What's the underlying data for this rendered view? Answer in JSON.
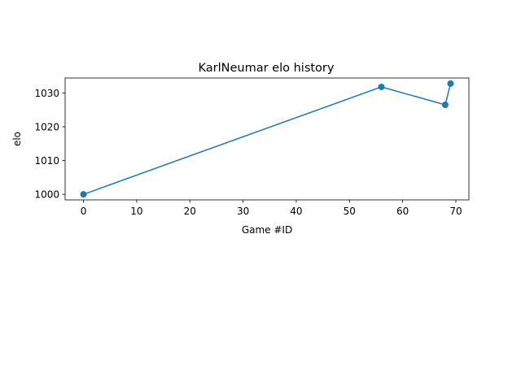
{
  "chart_data": {
    "type": "line",
    "title": "KarlNeumar elo history",
    "xlabel": "Game #ID",
    "ylabel": "elo",
    "series": [
      {
        "name": "elo",
        "color": "#1f77b4",
        "marker": "circle",
        "x": [
          0,
          56,
          68,
          69
        ],
        "y": [
          1000,
          1031.8,
          1026.5,
          1032.8
        ]
      }
    ],
    "xlim": [
      -3.45,
      72.45
    ],
    "ylim": [
      998.36,
      1034.44
    ],
    "xticks": [
      0,
      10,
      20,
      30,
      40,
      50,
      60,
      70
    ],
    "yticks": [
      1000,
      1010,
      1020,
      1030
    ],
    "xtick_labels": [
      "0",
      "10",
      "20",
      "30",
      "40",
      "50",
      "60",
      "70"
    ],
    "ytick_labels": [
      "1000",
      "1010",
      "1020",
      "1030"
    ],
    "grid": false,
    "legend": null
  }
}
